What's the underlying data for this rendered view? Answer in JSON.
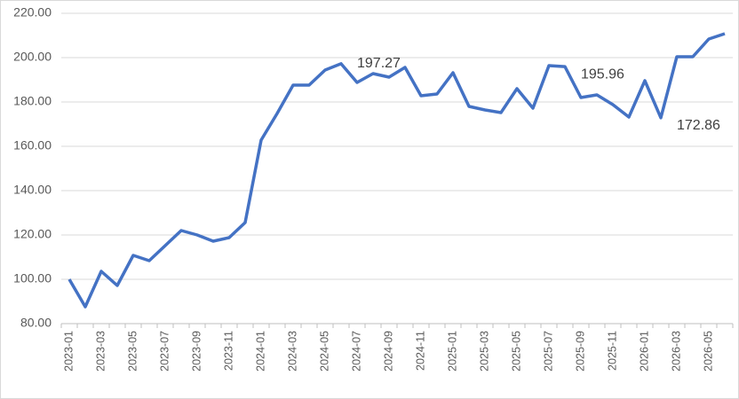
{
  "chart_data": {
    "type": "line",
    "categories": [
      "2023-01",
      null,
      "2023-03",
      null,
      "2023-05",
      null,
      "2023-07",
      null,
      "2023-09",
      null,
      "2023-11",
      null,
      "2024-01",
      null,
      "2024-03",
      null,
      "2024-05",
      null,
      "2024-07",
      null,
      "2024-09",
      null,
      "2024-11",
      null,
      "2025-01",
      null,
      "2025-03",
      null,
      "2025-05",
      null,
      "2025-07",
      null,
      "2025-09",
      null,
      "2025-11",
      null,
      "2026-01",
      null,
      "2026-03",
      null,
      "2026-05",
      null
    ],
    "series": [
      {
        "color": "#4472c4",
        "values": [
          100.0,
          87.6,
          103.6,
          97.2,
          110.8,
          108.4,
          115.2,
          122.0,
          120.0,
          117.2,
          118.8,
          125.6,
          162.8,
          174.8,
          187.6,
          187.6,
          194.4,
          197.27,
          188.8,
          192.8,
          191.2,
          195.6,
          182.8,
          183.6,
          193.2,
          178.0,
          176.4,
          175.2,
          186.0,
          177.2,
          196.4,
          195.96,
          182.0,
          183.2,
          178.8,
          173.2,
          189.6,
          172.86,
          200.4,
          200.4,
          208.4,
          210.8
        ],
        "value_labels": [
          null,
          null,
          null,
          null,
          null,
          null,
          null,
          null,
          null,
          null,
          null,
          null,
          null,
          null,
          null,
          null,
          null,
          "197.27",
          null,
          null,
          null,
          null,
          null,
          null,
          null,
          null,
          null,
          null,
          null,
          null,
          null,
          "195.96",
          null,
          null,
          null,
          null,
          null,
          "172.86",
          null,
          null,
          null,
          null
        ]
      }
    ],
    "ylim": [
      80,
      220
    ],
    "yticks": [
      {
        "value": 80,
        "label": "80.00"
      },
      {
        "value": 100,
        "label": "100.00"
      },
      {
        "value": 120,
        "label": "120.00"
      },
      {
        "value": 140,
        "label": "140.00"
      },
      {
        "value": 160,
        "label": "160.00"
      },
      {
        "value": 180,
        "label": "180.00"
      },
      {
        "value": 200,
        "label": "200.00"
      },
      {
        "value": 220,
        "label": "220.00"
      }
    ],
    "grid": true
  }
}
